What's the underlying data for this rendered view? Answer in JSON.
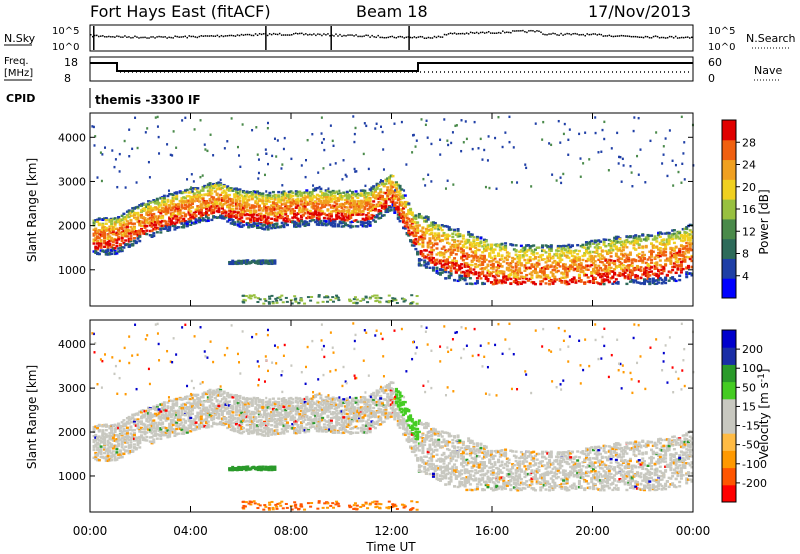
{
  "header": {
    "station": "Fort Hays East (fitACF)",
    "beam": "Beam 18",
    "date": "17/Nov/2013"
  },
  "top_panels": {
    "nsky_label": "N.Sky",
    "nsky_ticks": [
      "10^5",
      "10^0"
    ],
    "nsearch_label": "N.Search",
    "nsearch_ticks": [
      "10^5",
      "10^0"
    ],
    "freq_label": "Freq.",
    "freq_unit": "[MHz]",
    "freq_ticks": [
      "18",
      "8"
    ],
    "nave_label": "Nave",
    "nave_ticks": [
      "60",
      "0"
    ],
    "cpid_label": "CPID",
    "cpid_value": "themis -3300 IF"
  },
  "colors": {
    "power_scale": [
      "#0000ff",
      "#1f3fa6",
      "#2e6b5a",
      "#4a8a4a",
      "#98c040",
      "#f0d020",
      "#f0a020",
      "#f06010",
      "#e00000"
    ],
    "velocity_scale": [
      "#ff0000",
      "#ff5500",
      "#ff9900",
      "#ffbb44",
      "#c8c8c0",
      "#c8c8c0",
      "#44cc22",
      "#2a9a2a",
      "#1a2ea6",
      "#0000cc"
    ]
  },
  "chart_data": [
    {
      "type": "heatmap",
      "name": "power",
      "ylabel": "Slant Range [km]",
      "xlabel": "Time UT",
      "x_range_hours": [
        0,
        24
      ],
      "ylim": [
        180,
        4550
      ],
      "x_ticks": [
        "00:00",
        "04:00",
        "08:00",
        "12:00",
        "16:00",
        "20:00",
        "00:00"
      ],
      "y_ticks": [
        1000,
        2000,
        3000,
        4000
      ],
      "colorbar": {
        "label": "Power [dB]",
        "ticks": [
          "28",
          "24",
          "20",
          "16",
          "12",
          "8",
          "4"
        ],
        "range": [
          0,
          30
        ]
      },
      "scatter_band_center_km": [
        [
          0,
          1800
        ],
        [
          1,
          1850
        ],
        [
          2,
          2150
        ],
        [
          3,
          2350
        ],
        [
          4,
          2500
        ],
        [
          5,
          2650
        ],
        [
          6,
          2450
        ],
        [
          7,
          2400
        ],
        [
          8,
          2450
        ],
        [
          9,
          2500
        ],
        [
          10,
          2450
        ],
        [
          11,
          2450
        ],
        [
          12,
          2850
        ],
        [
          13,
          1800
        ],
        [
          14,
          1500
        ],
        [
          15,
          1350
        ],
        [
          16,
          1150
        ],
        [
          17,
          1050
        ],
        [
          18,
          1050
        ],
        [
          19,
          1050
        ],
        [
          20,
          1150
        ],
        [
          21,
          1250
        ],
        [
          22,
          1300
        ],
        [
          23,
          1350
        ],
        [
          24,
          1550
        ]
      ],
      "secondary_echo": {
        "hours": [
          5.5,
          7.3
        ],
        "range_km": 1200
      }
    },
    {
      "type": "heatmap",
      "name": "velocity",
      "ylabel": "Slant Range [km]",
      "xlabel": "Time UT",
      "x_range_hours": [
        0,
        24
      ],
      "ylim": [
        180,
        4550
      ],
      "x_ticks": [
        "00:00",
        "04:00",
        "08:00",
        "12:00",
        "16:00",
        "20:00",
        "00:00"
      ],
      "y_ticks": [
        1000,
        2000,
        3000,
        4000
      ],
      "colorbar": {
        "label": "Velocity [m s",
        "label_exp": "-1",
        "label_end": "]",
        "ticks": [
          "200",
          "100",
          "50",
          "15",
          "-15",
          "-50",
          "-100",
          "-200"
        ],
        "range": [
          -250,
          250
        ]
      }
    }
  ],
  "time_axis": {
    "label": "Time UT",
    "ticks": [
      "00:00",
      "04:00",
      "08:00",
      "12:00",
      "16:00",
      "20:00",
      "00:00"
    ]
  }
}
